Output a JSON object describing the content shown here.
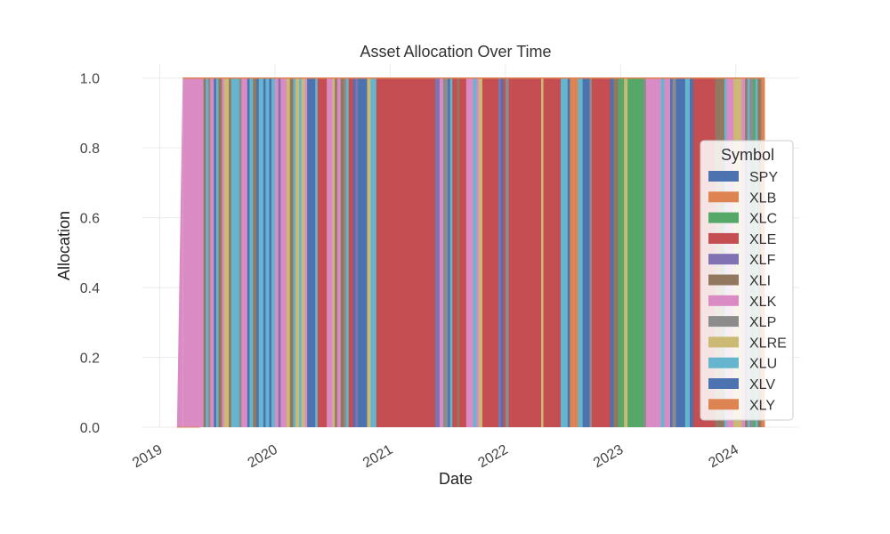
{
  "chart_data": {
    "type": "area",
    "subtype": "stacked-area",
    "title": "Asset Allocation Over Time",
    "xlabel": "Date",
    "ylabel": "Allocation",
    "xlim": [
      2018.85,
      2024.55
    ],
    "ylim": [
      0,
      1.04
    ],
    "yticks": [
      0.0,
      0.2,
      0.4,
      0.6,
      0.8,
      1.0
    ],
    "ytick_labels": [
      "0.0",
      "0.2",
      "0.4",
      "0.6",
      "0.8",
      "1.0"
    ],
    "xticks": [
      2019,
      2020,
      2021,
      2022,
      2023,
      2024
    ],
    "xtick_labels": [
      "2019",
      "2020",
      "2021",
      "2022",
      "2023",
      "2024"
    ],
    "grid": true,
    "legend": {
      "title": "Symbol",
      "placement": "center-right",
      "entries": [
        "SPY",
        "XLB",
        "XLC",
        "XLE",
        "XLF",
        "XLI",
        "XLK",
        "XLP",
        "XLRE",
        "XLU",
        "XLV",
        "XLY"
      ]
    },
    "colors": {
      "SPY": "#4c72b0",
      "XLB": "#dd8452",
      "XLC": "#55a868",
      "XLE": "#c44e52",
      "XLF": "#8172b3",
      "XLI": "#937860",
      "XLK": "#da8bc3",
      "XLP": "#8c8c8c",
      "XLRE": "#ccb974",
      "XLU": "#64b5cd",
      "XLV": "#4c72b0",
      "XLY": "#dd8452"
    },
    "start": 2019.15,
    "allocation_start": 2019.2,
    "end": 2024.25,
    "note": "Each segment holds a 1.0 allocation in a single symbol from 'from' until the next segment begins (approximate, read from the figure).",
    "segments": [
      {
        "from": 2019.2,
        "symbol": "XLK"
      },
      {
        "from": 2019.38,
        "symbol": "XLI"
      },
      {
        "from": 2019.4,
        "symbol": "XLU"
      },
      {
        "from": 2019.42,
        "symbol": "XLP"
      },
      {
        "from": 2019.44,
        "symbol": "XLK"
      },
      {
        "from": 2019.47,
        "symbol": "SPY"
      },
      {
        "from": 2019.49,
        "symbol": "XLU"
      },
      {
        "from": 2019.51,
        "symbol": "XLI"
      },
      {
        "from": 2019.54,
        "symbol": "XLK"
      },
      {
        "from": 2019.56,
        "symbol": "XLRE"
      },
      {
        "from": 2019.6,
        "symbol": "XLI"
      },
      {
        "from": 2019.62,
        "symbol": "XLU"
      },
      {
        "from": 2019.69,
        "symbol": "XLP"
      },
      {
        "from": 2019.71,
        "symbol": "XLK"
      },
      {
        "from": 2019.76,
        "symbol": "XLV"
      },
      {
        "from": 2019.78,
        "symbol": "XLU"
      },
      {
        "from": 2019.81,
        "symbol": "XLI"
      },
      {
        "from": 2019.84,
        "symbol": "XLV"
      },
      {
        "from": 2019.86,
        "symbol": "XLU"
      },
      {
        "from": 2019.9,
        "symbol": "XLV"
      },
      {
        "from": 2019.92,
        "symbol": "XLU"
      },
      {
        "from": 2019.95,
        "symbol": "XLV"
      },
      {
        "from": 2019.97,
        "symbol": "XLU"
      },
      {
        "from": 2020.0,
        "symbol": "XLK"
      },
      {
        "from": 2020.03,
        "symbol": "XLF"
      },
      {
        "from": 2020.05,
        "symbol": "XLK"
      },
      {
        "from": 2020.1,
        "symbol": "XLRE"
      },
      {
        "from": 2020.13,
        "symbol": "XLI"
      },
      {
        "from": 2020.16,
        "symbol": "XLU"
      },
      {
        "from": 2020.18,
        "symbol": "XLRE"
      },
      {
        "from": 2020.21,
        "symbol": "XLU"
      },
      {
        "from": 2020.23,
        "symbol": "XLRE"
      },
      {
        "from": 2020.26,
        "symbol": "XLK"
      },
      {
        "from": 2020.28,
        "symbol": "SPY"
      },
      {
        "from": 2020.35,
        "symbol": "XLU"
      },
      {
        "from": 2020.37,
        "symbol": "XLE"
      },
      {
        "from": 2020.45,
        "symbol": "XLK"
      },
      {
        "from": 2020.5,
        "symbol": "XLRE"
      },
      {
        "from": 2020.52,
        "symbol": "XLI"
      },
      {
        "from": 2020.54,
        "symbol": "XLK"
      },
      {
        "from": 2020.57,
        "symbol": "XLI"
      },
      {
        "from": 2020.6,
        "symbol": "XLP"
      },
      {
        "from": 2020.62,
        "symbol": "XLU"
      },
      {
        "from": 2020.64,
        "symbol": "XLE"
      },
      {
        "from": 2020.68,
        "symbol": "XLV"
      },
      {
        "from": 2020.7,
        "symbol": "XLF"
      },
      {
        "from": 2020.72,
        "symbol": "XLV"
      },
      {
        "from": 2020.8,
        "symbol": "XLRE"
      },
      {
        "from": 2020.83,
        "symbol": "XLU"
      },
      {
        "from": 2020.88,
        "symbol": "XLE"
      },
      {
        "from": 2021.39,
        "symbol": "XLF"
      },
      {
        "from": 2021.43,
        "symbol": "XLK"
      },
      {
        "from": 2021.46,
        "symbol": "XLP"
      },
      {
        "from": 2021.5,
        "symbol": "XLV"
      },
      {
        "from": 2021.52,
        "symbol": "XLU"
      },
      {
        "from": 2021.54,
        "symbol": "XLE"
      },
      {
        "from": 2021.58,
        "symbol": "XLI"
      },
      {
        "from": 2021.6,
        "symbol": "XLE"
      },
      {
        "from": 2021.66,
        "symbol": "XLK"
      },
      {
        "from": 2021.72,
        "symbol": "XLU"
      },
      {
        "from": 2021.75,
        "symbol": "XLK"
      },
      {
        "from": 2021.77,
        "symbol": "XLRE"
      },
      {
        "from": 2021.8,
        "symbol": "XLE"
      },
      {
        "from": 2021.94,
        "symbol": "XLF"
      },
      {
        "from": 2021.96,
        "symbol": "XLV"
      },
      {
        "from": 2021.98,
        "symbol": "XLE"
      },
      {
        "from": 2022.0,
        "symbol": "XLP"
      },
      {
        "from": 2022.03,
        "symbol": "XLE"
      },
      {
        "from": 2022.31,
        "symbol": "XLRE"
      },
      {
        "from": 2022.33,
        "symbol": "XLE"
      },
      {
        "from": 2022.48,
        "symbol": "XLU"
      },
      {
        "from": 2022.54,
        "symbol": "XLV"
      },
      {
        "from": 2022.56,
        "symbol": "XLY"
      },
      {
        "from": 2022.63,
        "symbol": "XLU"
      },
      {
        "from": 2022.67,
        "symbol": "XLV"
      },
      {
        "from": 2022.73,
        "symbol": "XLP"
      },
      {
        "from": 2022.75,
        "symbol": "XLE"
      },
      {
        "from": 2022.91,
        "symbol": "XLV"
      },
      {
        "from": 2022.94,
        "symbol": "XLI"
      },
      {
        "from": 2022.98,
        "symbol": "XLC"
      },
      {
        "from": 2023.03,
        "symbol": "XLRE"
      },
      {
        "from": 2023.06,
        "symbol": "XLC"
      },
      {
        "from": 2023.2,
        "symbol": "XLP"
      },
      {
        "from": 2023.22,
        "symbol": "XLK"
      },
      {
        "from": 2023.35,
        "symbol": "XLU"
      },
      {
        "from": 2023.38,
        "symbol": "XLK"
      },
      {
        "from": 2023.43,
        "symbol": "XLV"
      },
      {
        "from": 2023.45,
        "symbol": "XLP"
      },
      {
        "from": 2023.48,
        "symbol": "XLV"
      },
      {
        "from": 2023.56,
        "symbol": "XLU"
      },
      {
        "from": 2023.6,
        "symbol": "XLV"
      },
      {
        "from": 2023.63,
        "symbol": "XLE"
      },
      {
        "from": 2023.82,
        "symbol": "XLI"
      },
      {
        "from": 2023.9,
        "symbol": "XLU"
      },
      {
        "from": 2023.92,
        "symbol": "XLK"
      },
      {
        "from": 2023.98,
        "symbol": "XLRE"
      },
      {
        "from": 2024.05,
        "symbol": "XLK"
      },
      {
        "from": 2024.08,
        "symbol": "XLI"
      },
      {
        "from": 2024.1,
        "symbol": "XLU"
      },
      {
        "from": 2024.12,
        "symbol": "XLP"
      },
      {
        "from": 2024.15,
        "symbol": "XLC"
      },
      {
        "from": 2024.17,
        "symbol": "XLU"
      },
      {
        "from": 2024.19,
        "symbol": "XLI"
      },
      {
        "from": 2024.22,
        "symbol": "XLY"
      }
    ]
  }
}
